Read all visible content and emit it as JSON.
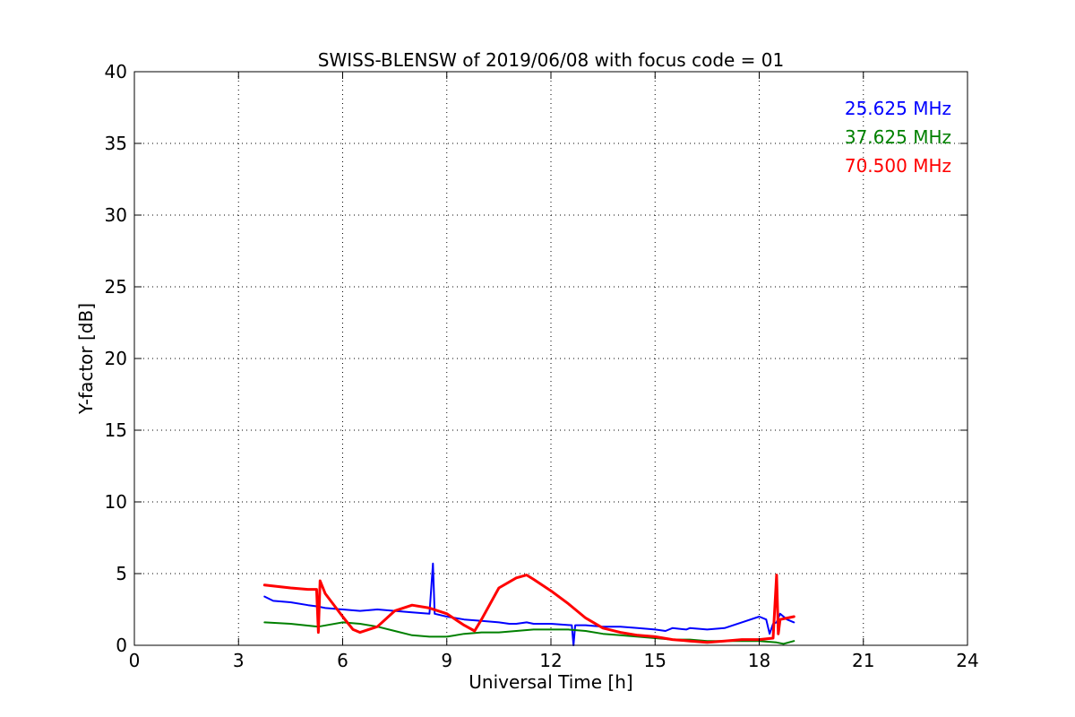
{
  "chart_data": {
    "type": "line",
    "title": "SWISS-BLENSW of 2019/06/08 with focus code = 01",
    "xlabel": "Universal Time [h]",
    "ylabel": "Y-factor [dB]",
    "xlim": [
      0,
      24
    ],
    "ylim": [
      0,
      40
    ],
    "xticks": [
      0,
      3,
      6,
      9,
      12,
      15,
      18,
      21,
      24
    ],
    "yticks": [
      0,
      5,
      10,
      15,
      20,
      25,
      30,
      35,
      40
    ],
    "xtick_labels": [
      "0",
      "3",
      "6",
      "9",
      "12",
      "15",
      "18",
      "21",
      "24"
    ],
    "ytick_labels": [
      "0",
      "5",
      "10",
      "15",
      "20",
      "25",
      "30",
      "35",
      "40"
    ],
    "grid": true,
    "legend_position": "top-right",
    "series": [
      {
        "name": "25.625 MHz",
        "color": "#0000ff",
        "x": [
          3.75,
          4.0,
          4.5,
          5.0,
          5.3,
          5.5,
          6.0,
          6.5,
          7.0,
          7.5,
          8.0,
          8.5,
          8.6,
          8.65,
          9.0,
          9.5,
          10.0,
          10.5,
          10.8,
          11.0,
          11.3,
          11.5,
          12.0,
          12.6,
          12.65,
          12.7,
          13.0,
          13.5,
          14.0,
          14.5,
          15.0,
          15.3,
          15.5,
          15.9,
          16.0,
          16.5,
          17.0,
          17.5,
          18.0,
          18.2,
          18.3,
          18.4,
          18.5,
          18.6,
          18.8,
          19.0
        ],
        "y": [
          3.4,
          3.1,
          3.0,
          2.8,
          2.7,
          2.6,
          2.5,
          2.4,
          2.5,
          2.4,
          2.3,
          2.2,
          5.7,
          2.2,
          2.0,
          1.8,
          1.7,
          1.6,
          1.5,
          1.5,
          1.6,
          1.5,
          1.5,
          1.4,
          0.0,
          1.4,
          1.4,
          1.3,
          1.3,
          1.2,
          1.1,
          1.0,
          1.2,
          1.1,
          1.2,
          1.1,
          1.2,
          1.6,
          2.0,
          1.8,
          0.8,
          1.5,
          1.6,
          2.2,
          1.8,
          1.6
        ]
      },
      {
        "name": "37.625 MHz",
        "color": "#008000",
        "x": [
          3.75,
          4.5,
          5.3,
          6.0,
          6.5,
          7.0,
          7.5,
          8.0,
          8.5,
          9.0,
          9.5,
          10.0,
          10.5,
          11.0,
          11.5,
          12.0,
          12.5,
          13.0,
          13.5,
          14.0,
          14.5,
          15.0,
          15.5,
          16.0,
          16.5,
          17.0,
          17.5,
          18.0,
          18.5,
          18.7,
          19.0
        ],
        "y": [
          1.6,
          1.5,
          1.3,
          1.6,
          1.5,
          1.3,
          1.0,
          0.7,
          0.6,
          0.6,
          0.8,
          0.9,
          0.9,
          1.0,
          1.1,
          1.1,
          1.1,
          1.0,
          0.8,
          0.7,
          0.6,
          0.5,
          0.4,
          0.4,
          0.3,
          0.3,
          0.3,
          0.3,
          0.2,
          0.1,
          0.3
        ]
      },
      {
        "name": "70.500 MHz",
        "color": "#ff0000",
        "x": [
          3.75,
          4.5,
          5.0,
          5.25,
          5.3,
          5.35,
          5.5,
          6.0,
          6.3,
          6.5,
          7.0,
          7.5,
          8.0,
          8.5,
          9.0,
          9.5,
          9.8,
          10.0,
          10.5,
          11.0,
          11.3,
          11.5,
          12.0,
          12.5,
          13.0,
          13.5,
          14.0,
          14.5,
          15.0,
          15.5,
          16.0,
          16.5,
          17.0,
          17.5,
          18.0,
          18.4,
          18.5,
          18.55,
          18.6,
          18.8,
          19.0
        ],
        "y": [
          4.2,
          4.0,
          3.9,
          3.9,
          0.9,
          4.5,
          3.6,
          2.0,
          1.1,
          0.9,
          1.3,
          2.4,
          2.8,
          2.6,
          2.2,
          1.4,
          1.0,
          1.8,
          4.0,
          4.7,
          4.9,
          4.6,
          3.8,
          2.9,
          1.9,
          1.2,
          0.9,
          0.7,
          0.6,
          0.4,
          0.3,
          0.2,
          0.3,
          0.4,
          0.4,
          0.5,
          4.9,
          0.8,
          1.8,
          1.9,
          2.0
        ]
      }
    ]
  }
}
